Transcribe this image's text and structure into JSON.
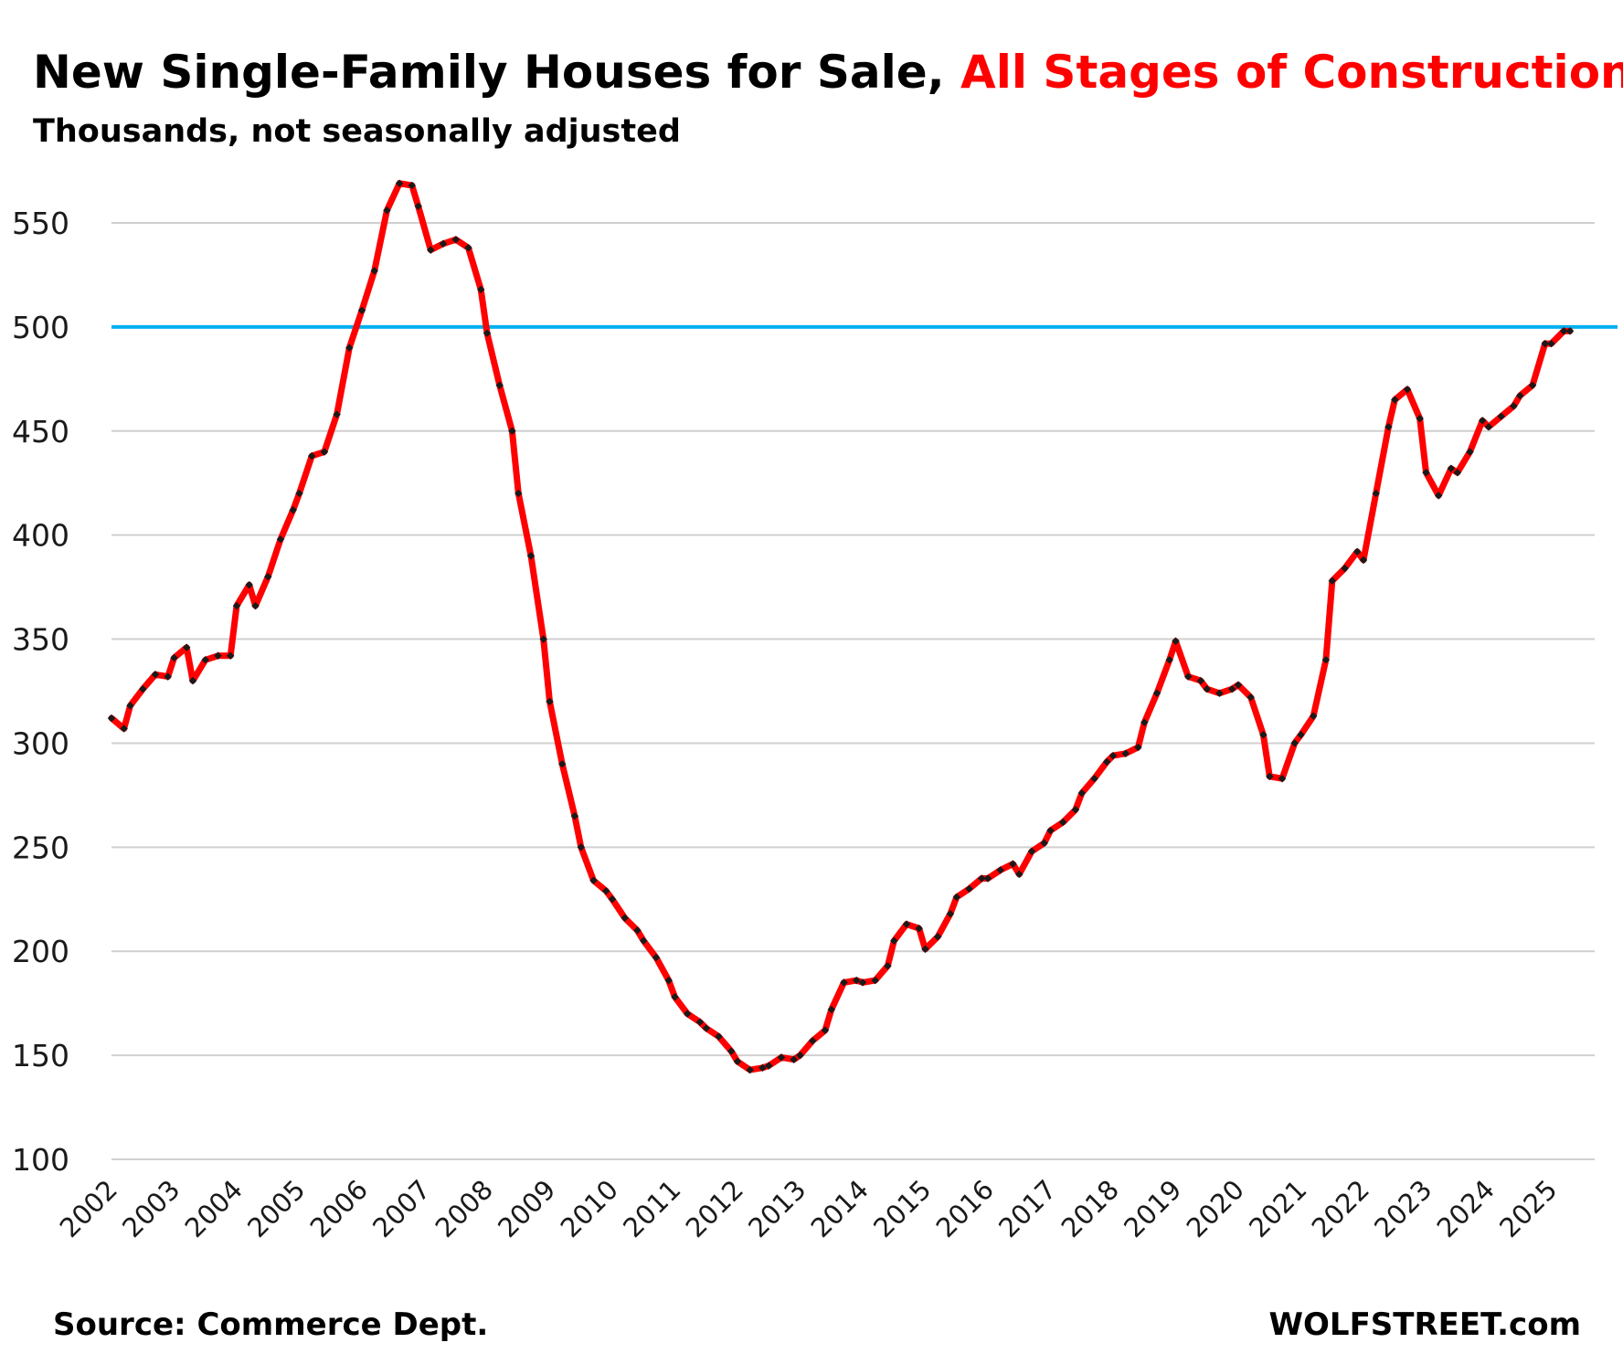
{
  "chart_data": {
    "type": "line",
    "title_main": "New Single-Family Houses for Sale, ",
    "title_highlight": "All Stages of Construction",
    "subtitle": "Thousands, not seasonally adjusted",
    "source": "Source: Commerce Dept.",
    "brand": "WOLFSTREET.com",
    "ylim": [
      100,
      570
    ],
    "yticks": [
      100,
      150,
      200,
      250,
      300,
      350,
      400,
      450,
      500,
      550
    ],
    "xlim": [
      2002,
      2025.3
    ],
    "xticks": [
      "2002",
      "2003",
      "2004",
      "2005",
      "2006",
      "2007",
      "2008",
      "2009",
      "2010",
      "2011",
      "2012",
      "2013",
      "2014",
      "2015",
      "2016",
      "2017",
      "2018",
      "2019",
      "2020",
      "2021",
      "2022",
      "2023",
      "2024",
      "2025"
    ],
    "grid": true,
    "legend": "none",
    "reference_line": {
      "value": 500,
      "color": "#00b0f0"
    },
    "series": [
      {
        "line_color": "#ff0000",
        "marker_color": "#1a1a1a",
        "points": [
          [
            2002.0,
            312
          ],
          [
            2002.2,
            307
          ],
          [
            2002.3,
            318
          ],
          [
            2002.5,
            326
          ],
          [
            2002.7,
            333
          ],
          [
            2002.9,
            332
          ],
          [
            2003.0,
            341
          ],
          [
            2003.2,
            346
          ],
          [
            2003.3,
            330
          ],
          [
            2003.5,
            340
          ],
          [
            2003.7,
            342
          ],
          [
            2003.9,
            342
          ],
          [
            2004.0,
            366
          ],
          [
            2004.2,
            376
          ],
          [
            2004.3,
            366
          ],
          [
            2004.5,
            380
          ],
          [
            2004.7,
            398
          ],
          [
            2004.9,
            412
          ],
          [
            2005.0,
            420
          ],
          [
            2005.2,
            438
          ],
          [
            2005.4,
            440
          ],
          [
            2005.6,
            458
          ],
          [
            2005.8,
            490
          ],
          [
            2006.0,
            508
          ],
          [
            2006.2,
            527
          ],
          [
            2006.4,
            556
          ],
          [
            2006.6,
            569
          ],
          [
            2006.8,
            568
          ],
          [
            2006.9,
            558
          ],
          [
            2007.1,
            537
          ],
          [
            2007.3,
            540
          ],
          [
            2007.5,
            542
          ],
          [
            2007.7,
            538
          ],
          [
            2007.9,
            518
          ],
          [
            2008.0,
            497
          ],
          [
            2008.2,
            472
          ],
          [
            2008.4,
            450
          ],
          [
            2008.5,
            420
          ],
          [
            2008.7,
            390
          ],
          [
            2008.9,
            350
          ],
          [
            2009.0,
            320
          ],
          [
            2009.2,
            290
          ],
          [
            2009.4,
            265
          ],
          [
            2009.5,
            250
          ],
          [
            2009.7,
            234
          ],
          [
            2009.9,
            229
          ],
          [
            2010.0,
            225
          ],
          [
            2010.2,
            216
          ],
          [
            2010.4,
            210
          ],
          [
            2010.5,
            205
          ],
          [
            2010.7,
            197
          ],
          [
            2010.9,
            186
          ],
          [
            2011.0,
            178
          ],
          [
            2011.2,
            170
          ],
          [
            2011.4,
            166
          ],
          [
            2011.5,
            163
          ],
          [
            2011.7,
            159
          ],
          [
            2011.9,
            152
          ],
          [
            2012.0,
            147
          ],
          [
            2012.2,
            143
          ],
          [
            2012.4,
            144
          ],
          [
            2012.5,
            145
          ],
          [
            2012.7,
            149
          ],
          [
            2012.9,
            148
          ],
          [
            2013.0,
            150
          ],
          [
            2013.2,
            157
          ],
          [
            2013.4,
            162
          ],
          [
            2013.5,
            172
          ],
          [
            2013.7,
            185
          ],
          [
            2013.9,
            186
          ],
          [
            2014.0,
            185
          ],
          [
            2014.2,
            186
          ],
          [
            2014.4,
            193
          ],
          [
            2014.5,
            205
          ],
          [
            2014.7,
            213
          ],
          [
            2014.9,
            211
          ],
          [
            2015.0,
            201
          ],
          [
            2015.2,
            207
          ],
          [
            2015.4,
            218
          ],
          [
            2015.5,
            226
          ],
          [
            2015.7,
            230
          ],
          [
            2015.9,
            235
          ],
          [
            2016.0,
            235
          ],
          [
            2016.2,
            239
          ],
          [
            2016.4,
            242
          ],
          [
            2016.5,
            237
          ],
          [
            2016.7,
            248
          ],
          [
            2016.9,
            252
          ],
          [
            2017.0,
            258
          ],
          [
            2017.2,
            262
          ],
          [
            2017.4,
            268
          ],
          [
            2017.5,
            276
          ],
          [
            2017.7,
            283
          ],
          [
            2017.9,
            291
          ],
          [
            2018.0,
            294
          ],
          [
            2018.2,
            295
          ],
          [
            2018.4,
            298
          ],
          [
            2018.5,
            310
          ],
          [
            2018.7,
            324
          ],
          [
            2018.9,
            340
          ],
          [
            2019.0,
            349
          ],
          [
            2019.2,
            332
          ],
          [
            2019.4,
            330
          ],
          [
            2019.5,
            326
          ],
          [
            2019.7,
            324
          ],
          [
            2019.9,
            326
          ],
          [
            2020.0,
            328
          ],
          [
            2020.2,
            322
          ],
          [
            2020.4,
            304
          ],
          [
            2020.5,
            284
          ],
          [
            2020.7,
            283
          ],
          [
            2020.9,
            300
          ],
          [
            2021.0,
            304
          ],
          [
            2021.2,
            313
          ],
          [
            2021.4,
            340
          ],
          [
            2021.5,
            378
          ],
          [
            2021.7,
            384
          ],
          [
            2021.9,
            392
          ],
          [
            2022.0,
            388
          ],
          [
            2022.2,
            420
          ],
          [
            2022.4,
            452
          ],
          [
            2022.5,
            465
          ],
          [
            2022.7,
            470
          ],
          [
            2022.9,
            456
          ],
          [
            2023.0,
            430
          ],
          [
            2023.2,
            419
          ],
          [
            2023.4,
            432
          ],
          [
            2023.5,
            430
          ],
          [
            2023.7,
            440
          ],
          [
            2023.9,
            455
          ],
          [
            2024.0,
            452
          ],
          [
            2024.2,
            457
          ],
          [
            2024.4,
            462
          ],
          [
            2024.5,
            467
          ],
          [
            2024.7,
            472
          ],
          [
            2024.9,
            492
          ],
          [
            2025.0,
            492
          ],
          [
            2025.2,
            498
          ],
          [
            2025.3,
            498
          ]
        ]
      }
    ]
  }
}
